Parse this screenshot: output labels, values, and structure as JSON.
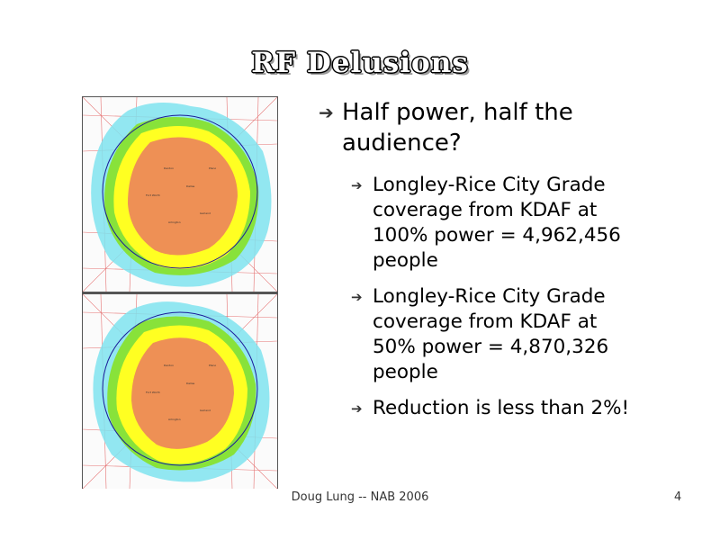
{
  "slide": {
    "title": "RF Delusions",
    "bullet_glyph": "➔",
    "main_bullet": "Half power, half the audience?",
    "sub_bullets": [
      "Longley-Rice City Grade coverage from KDAF at 100% power = 4,962,456 people",
      "Longley-Rice City Grade coverage from KDAF at 50% power = 4,870,326 people",
      "Reduction is less than 2%!"
    ],
    "footer": "Doug Lung -- NAB 2006",
    "page_number": "4"
  },
  "maps": [
    {
      "label": "KDAF coverage map 100% power",
      "icon": "coverage-map"
    },
    {
      "label": "KDAF coverage map 50% power",
      "icon": "coverage-map"
    }
  ],
  "colors": {
    "core": "#ee9055",
    "ring_yellow": "#ffff22",
    "ring_green": "#88e23a",
    "ring_cyan": "#7fe3ee",
    "contour": "#1a1a99",
    "roads": "#e05050"
  }
}
